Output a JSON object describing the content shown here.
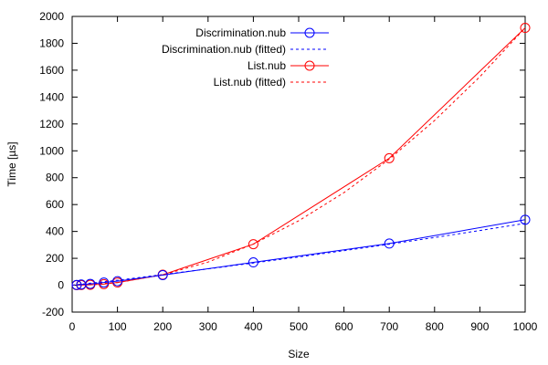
{
  "chart_data": {
    "type": "line",
    "title": "",
    "xlabel": "Size",
    "ylabel": "Time [µs]",
    "xlim": [
      0,
      1000
    ],
    "ylim": [
      -200,
      2000
    ],
    "xticks": [
      0,
      100,
      200,
      300,
      400,
      500,
      600,
      700,
      800,
      900,
      1000
    ],
    "yticks": [
      -200,
      0,
      200,
      400,
      600,
      800,
      1000,
      1200,
      1400,
      1600,
      1800,
      2000
    ],
    "grid": false,
    "legend_position": "top-right",
    "series": [
      {
        "name": "Discrimination.nub",
        "color": "#0000ff",
        "style": "line-with-circles",
        "points": [
          [
            10,
            2
          ],
          [
            20,
            5
          ],
          [
            40,
            10
          ],
          [
            70,
            20
          ],
          [
            100,
            30
          ],
          [
            200,
            75
          ],
          [
            400,
            170
          ],
          [
            700,
            310
          ],
          [
            1000,
            487
          ]
        ]
      },
      {
        "name": "Discrimination.nub (fitted)",
        "color": "#0000ff",
        "style": "dotted-line",
        "points": [
          [
            0,
            0
          ],
          [
            100,
            37
          ],
          [
            200,
            79
          ],
          [
            300,
            121
          ],
          [
            400,
            165
          ],
          [
            500,
            210
          ],
          [
            600,
            257
          ],
          [
            700,
            305
          ],
          [
            800,
            355
          ],
          [
            900,
            407
          ],
          [
            1000,
            460
          ]
        ]
      },
      {
        "name": "List.nub",
        "color": "#ff0000",
        "style": "line-with-circles",
        "points": [
          [
            10,
            0
          ],
          [
            20,
            1
          ],
          [
            40,
            3
          ],
          [
            70,
            8
          ],
          [
            100,
            20
          ],
          [
            200,
            78
          ],
          [
            400,
            305
          ],
          [
            700,
            945
          ],
          [
            1000,
            1915
          ]
        ]
      },
      {
        "name": "List.nub (fitted)",
        "color": "#ff0000",
        "style": "dotted-line",
        "points": [
          [
            0,
            0
          ],
          [
            100,
            19
          ],
          [
            200,
            77
          ],
          [
            300,
            172
          ],
          [
            400,
            306
          ],
          [
            500,
            479
          ],
          [
            600,
            689
          ],
          [
            700,
            938
          ],
          [
            800,
            1225
          ],
          [
            900,
            1551
          ],
          [
            1000,
            1915
          ]
        ]
      }
    ]
  }
}
